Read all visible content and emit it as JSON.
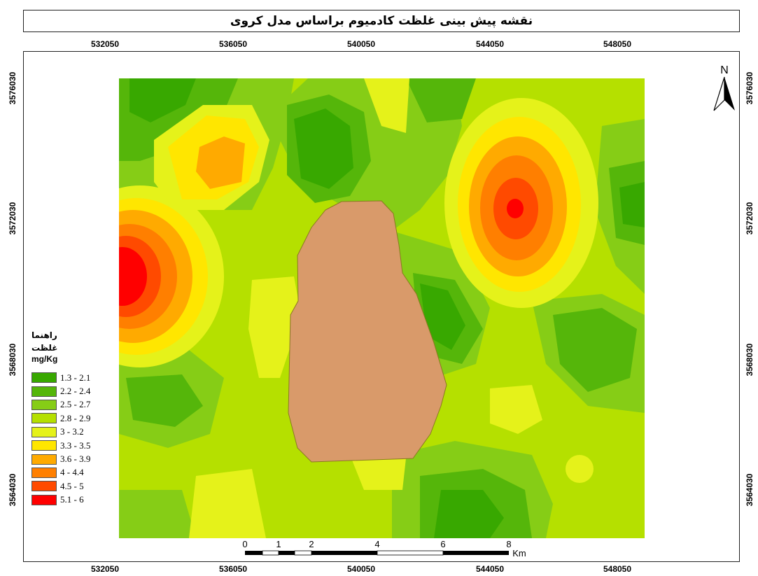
{
  "title": "نقشه پیش بینی غلظت کادمیوم براساس مدل کروی",
  "x_ticks": [
    "532050",
    "536050",
    "540050",
    "544050",
    "548050"
  ],
  "y_ticks": [
    "3576030",
    "3572030",
    "3568030",
    "3564030"
  ],
  "north_label": "N",
  "legend": {
    "title_line1": "راهنما",
    "title_line2": "غلظت",
    "unit": "mg/Kg",
    "items": [
      {
        "label": "1.3 - 2.1",
        "color": "#38a800"
      },
      {
        "label": "2.2 - 2.4",
        "color": "#55b60a"
      },
      {
        "label": "2.5 - 2.7",
        "color": "#86cd16"
      },
      {
        "label": "2.8 - 2.9",
        "color": "#b5e000"
      },
      {
        "label": "3 - 3.2",
        "color": "#e5f21a"
      },
      {
        "label": "3.3 - 3.5",
        "color": "#ffe600"
      },
      {
        "label": "3.6 - 3.9",
        "color": "#ffaa00"
      },
      {
        "label": "4 - 4.4",
        "color": "#ff7f00"
      },
      {
        "label": "4.5 - 5",
        "color": "#ff4a00"
      },
      {
        "label": "5.1 - 6",
        "color": "#ff0000"
      }
    ]
  },
  "lake_color": "#d99a6a",
  "scale_bar": {
    "labels": [
      "0",
      "1",
      "2",
      "4",
      "6",
      "8"
    ],
    "unit": "Km"
  }
}
